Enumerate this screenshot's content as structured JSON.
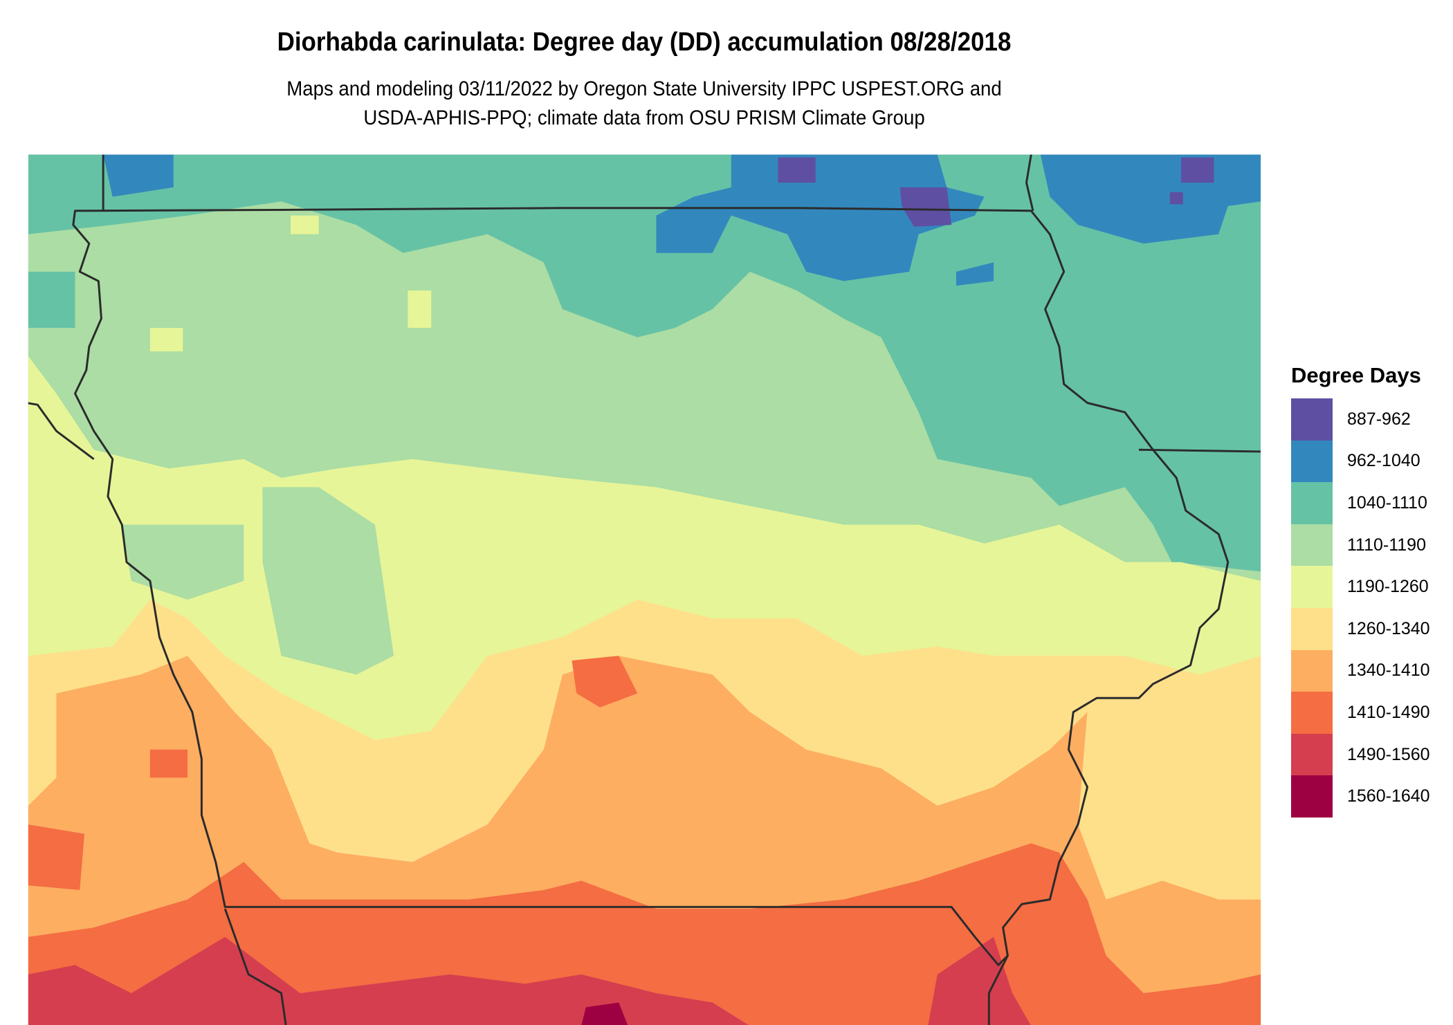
{
  "title": "Diorhabda carinulata: Degree day (DD) accumulation 08/28/2018",
  "subtitle_line1": "Maps and modeling 03/11/2022 by Oregon State University IPPC USPEST.ORG and",
  "subtitle_line2": "USDA-APHIS-PPQ; climate data from OSU PRISM Climate Group",
  "legend": {
    "title": "Degree Days",
    "items": [
      {
        "label": "887-962",
        "color": "#5e4fa2"
      },
      {
        "label": "962-1040",
        "color": "#3288bd"
      },
      {
        "label": "1040-1110",
        "color": "#66c2a5"
      },
      {
        "label": "1110-1190",
        "color": "#abdda4"
      },
      {
        "label": "1190-1260",
        "color": "#e6f598"
      },
      {
        "label": "1260-1340",
        "color": "#fee08b"
      },
      {
        "label": "1340-1410",
        "color": "#fdae61"
      },
      {
        "label": "1410-1490",
        "color": "#f46d43"
      },
      {
        "label": "1490-1560",
        "color": "#d53e4f"
      },
      {
        "label": "1560-1640",
        "color": "#9e0142"
      }
    ]
  },
  "border_color": "#2b2b2b"
}
